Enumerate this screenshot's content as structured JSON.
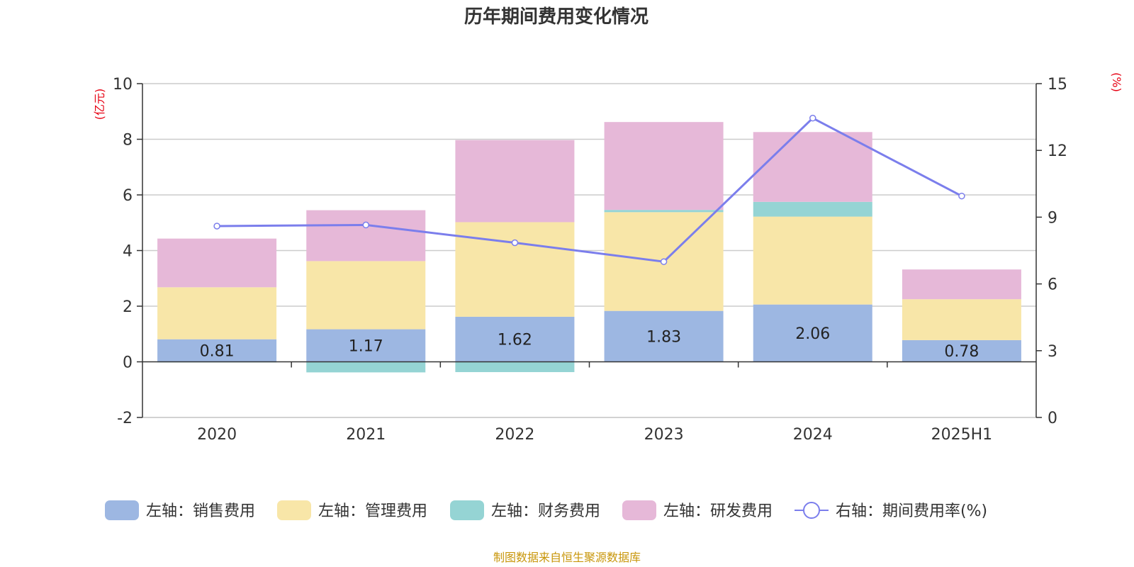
{
  "chart_data": {
    "type": "bar",
    "title": "历年期间费用变化情况",
    "categories": [
      "2020",
      "2021",
      "2022",
      "2023",
      "2024",
      "2025H1"
    ],
    "left_axis": {
      "unit": "(亿元)",
      "ylim": [
        -2,
        10
      ],
      "ticks": [
        -2,
        0,
        2,
        4,
        6,
        8,
        10
      ]
    },
    "right_axis": {
      "unit": "(%)",
      "ylim": [
        0,
        15
      ],
      "ticks": [
        0,
        3,
        6,
        9,
        12,
        15
      ]
    },
    "stacked": true,
    "series": [
      {
        "name": "左轴：销售费用",
        "axis": "left",
        "color": "#9db7e2",
        "values": [
          0.81,
          1.17,
          1.62,
          1.83,
          2.06,
          0.78
        ],
        "labels": [
          "0.81",
          "1.17",
          "1.62",
          "1.83",
          "2.06",
          "0.78"
        ]
      },
      {
        "name": "左轴：管理费用",
        "axis": "left",
        "color": "#f8e6a8",
        "values": [
          1.87,
          2.45,
          3.4,
          3.55,
          3.16,
          1.47
        ]
      },
      {
        "name": "左轴：财务费用",
        "axis": "left",
        "color": "#95d4d4",
        "values": [
          -0.02,
          -0.38,
          -0.37,
          0.08,
          0.53,
          -0.01
        ]
      },
      {
        "name": "左轴：研发费用",
        "axis": "left",
        "color": "#e6b8d8",
        "values": [
          1.75,
          1.83,
          2.95,
          3.16,
          2.51,
          1.07
        ]
      },
      {
        "name": "右轴：期间费用率(%)",
        "axis": "right",
        "type": "line",
        "color": "#7b7eec",
        "values": [
          8.6,
          8.65,
          7.85,
          7.0,
          13.45,
          9.95
        ]
      }
    ],
    "grid": true,
    "legend_position": "bottom"
  },
  "source": "制图数据来自恒生聚源数据库"
}
